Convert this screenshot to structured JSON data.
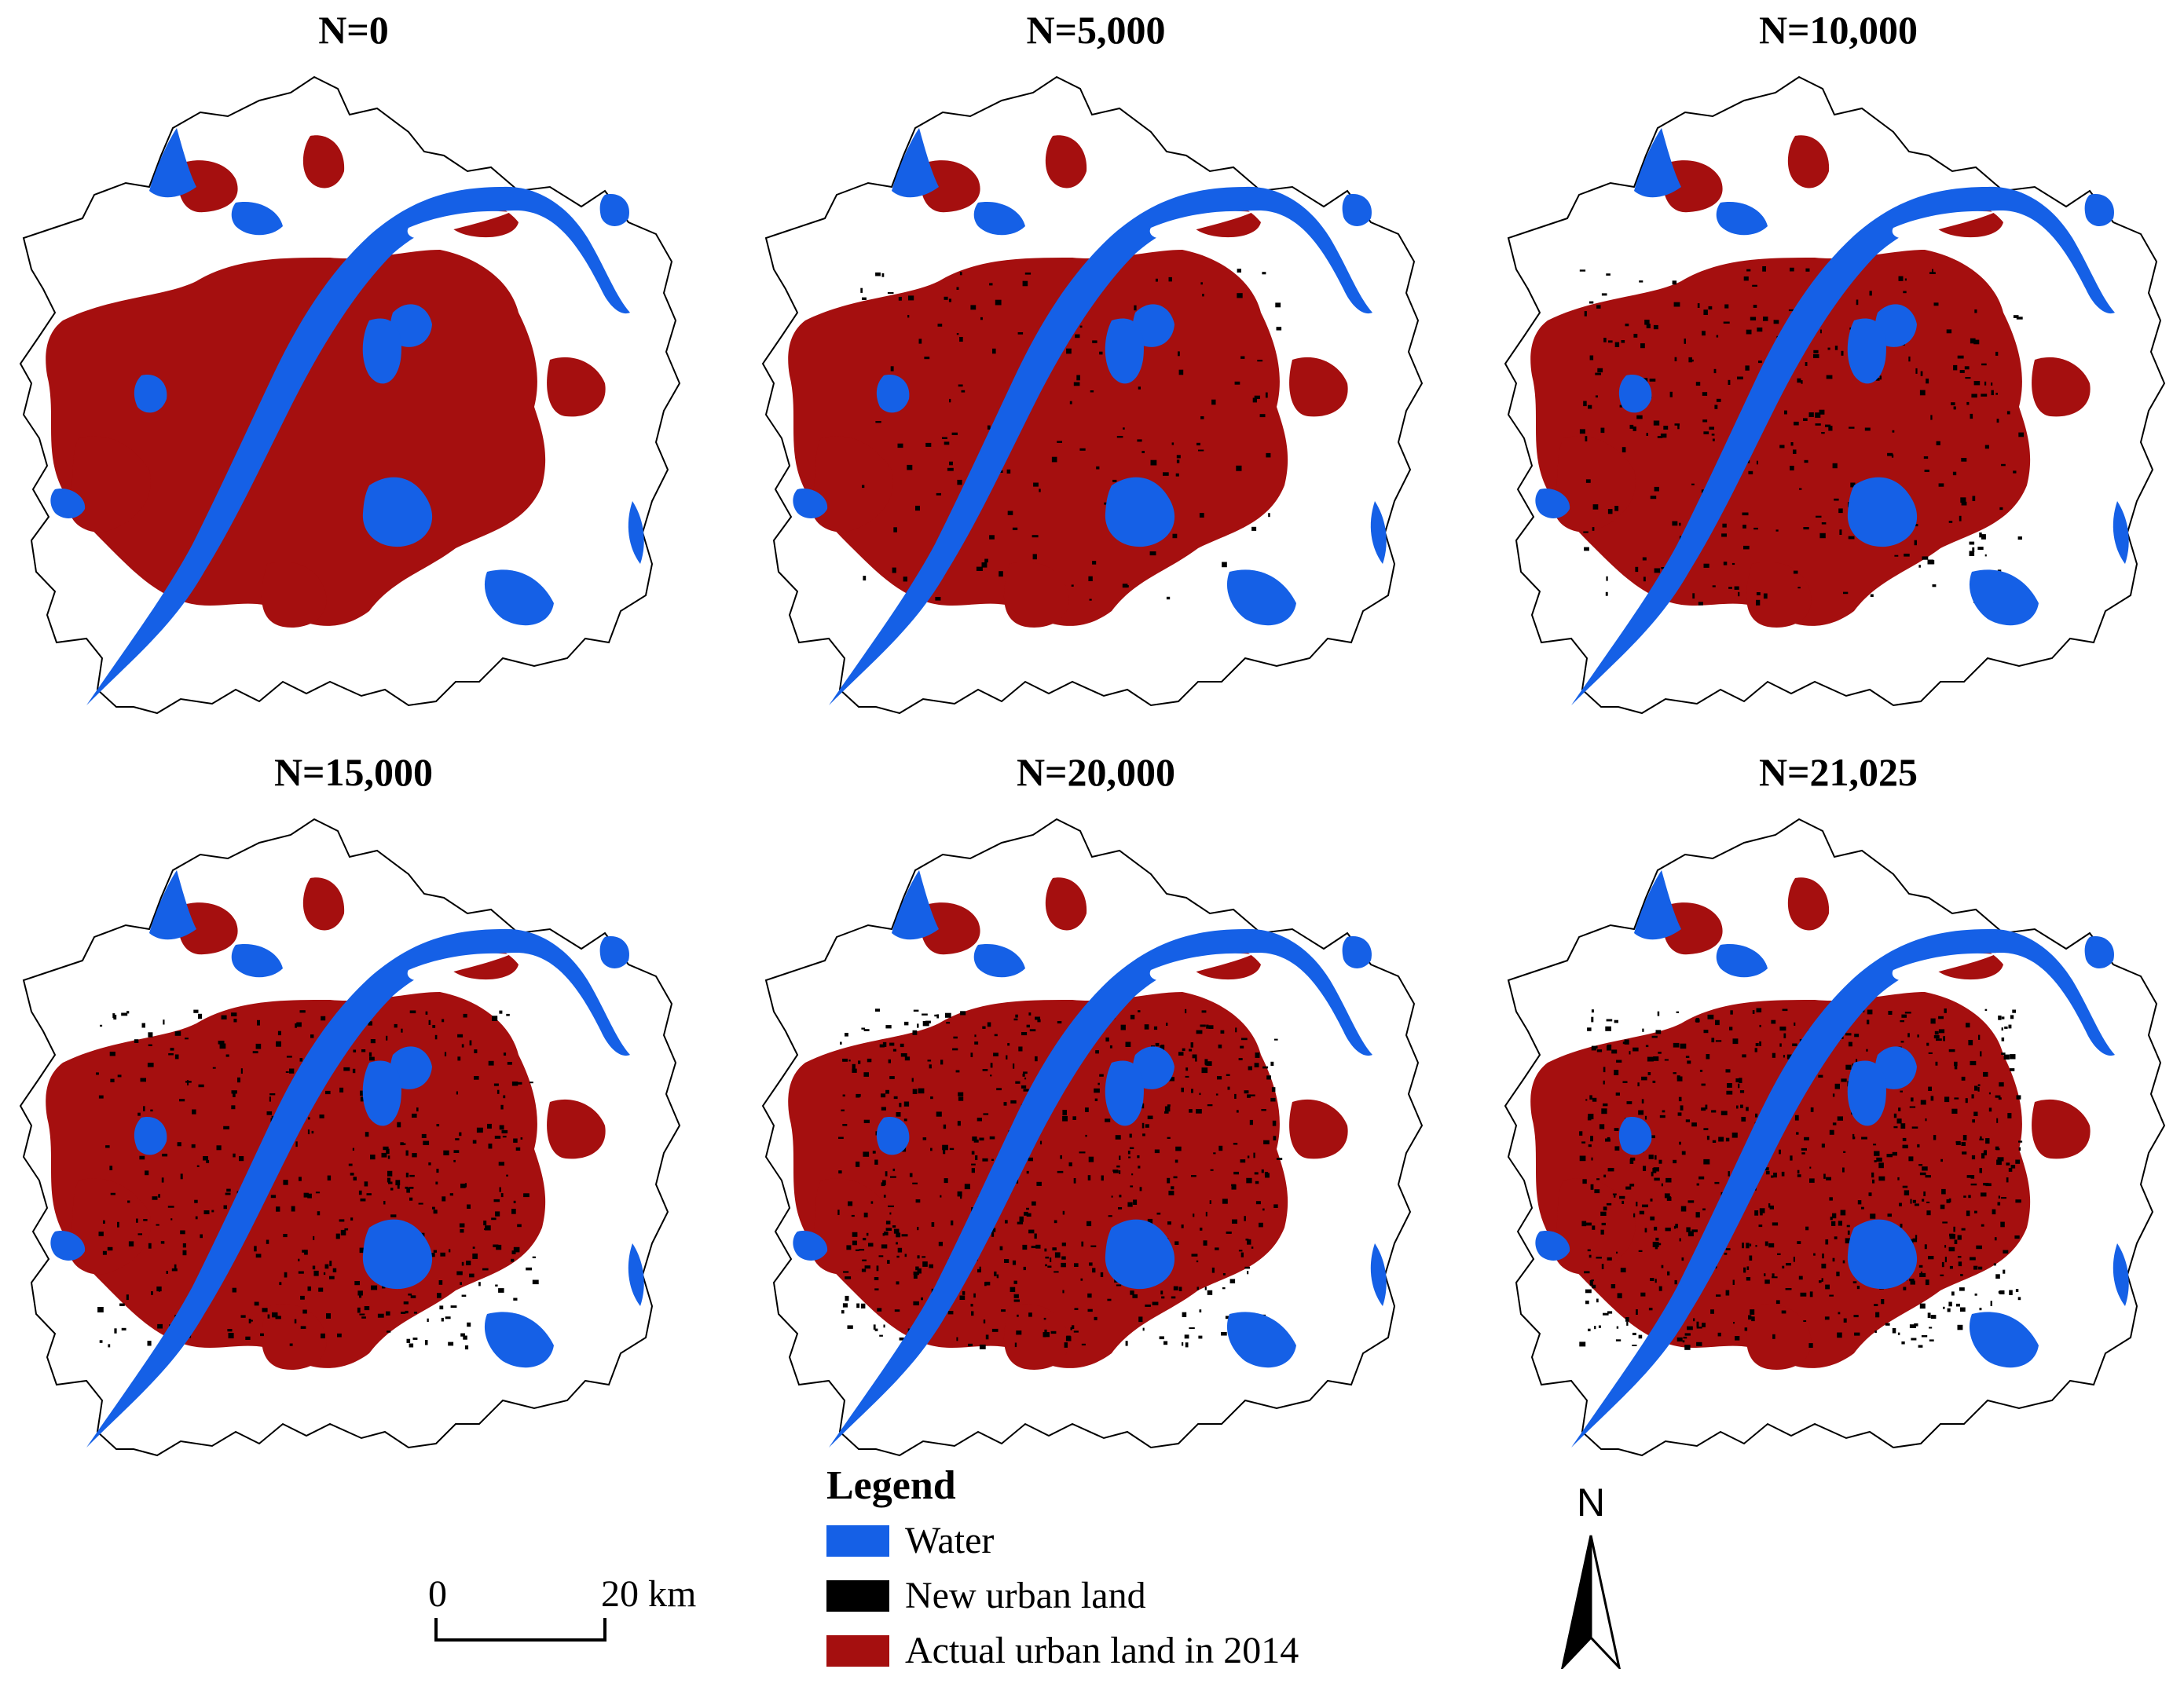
{
  "panels": [
    {
      "title": "N=0",
      "new_urban_level": 0
    },
    {
      "title": "N=5,000",
      "new_urban_level": 1
    },
    {
      "title": "N=10,000",
      "new_urban_level": 2
    },
    {
      "title": "N=15,000",
      "new_urban_level": 3
    },
    {
      "title": "N=20,000",
      "new_urban_level": 4
    },
    {
      "title": "N=21,025",
      "new_urban_level": 5
    }
  ],
  "legend": {
    "title": "Legend",
    "items": [
      {
        "label": "Water",
        "color": "#1560e6"
      },
      {
        "label": "New urban land",
        "color": "#000000"
      },
      {
        "label": "Actual urban land in 2014",
        "color": "#a50f0f"
      }
    ]
  },
  "scale_bar": {
    "start_label": "0",
    "end_label": "20 km"
  },
  "north_arrow": {
    "label": "N"
  },
  "colors": {
    "water": "#1560e6",
    "new_urban": "#000000",
    "urban": "#a50f0f",
    "boundary": "#000000",
    "background": "#ffffff"
  }
}
